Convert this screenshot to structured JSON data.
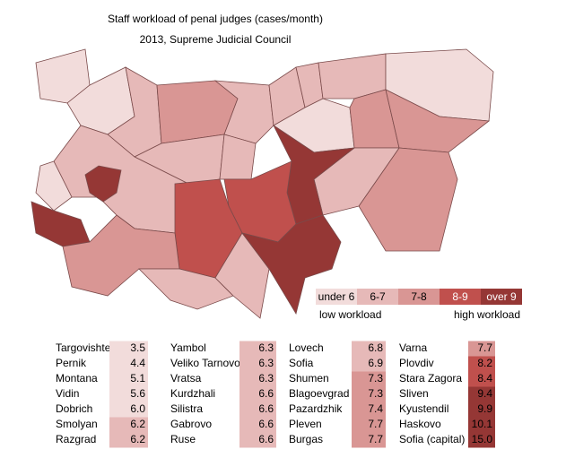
{
  "title": "Staff workload of penal judges (cases/month)",
  "subtitle": "2013, Supreme Judicial Council",
  "legend": {
    "items": [
      {
        "label": "under 6",
        "color": "#f2dcdb"
      },
      {
        "label": "6-7",
        "color": "#e6b9b8"
      },
      {
        "label": "7-8",
        "color": "#d99694"
      },
      {
        "label": "8-9",
        "color": "#c0504d"
      },
      {
        "label": "over 9",
        "color": "#953735"
      }
    ],
    "low_label": "low workload",
    "high_label": "high workload"
  },
  "table": {
    "columns": [
      [
        {
          "name": "Targovishte",
          "value": "3.5",
          "color": "#f2dcdb"
        },
        {
          "name": "Pernik",
          "value": "4.4",
          "color": "#f2dcdb"
        },
        {
          "name": "Montana",
          "value": "5.1",
          "color": "#f2dcdb"
        },
        {
          "name": "Vidin",
          "value": "5.6",
          "color": "#f2dcdb"
        },
        {
          "name": "Dobrich",
          "value": "6.0",
          "color": "#f2dcdb"
        },
        {
          "name": "Smolyan",
          "value": "6.2",
          "color": "#e6b9b8"
        },
        {
          "name": "Razgrad",
          "value": "6.2",
          "color": "#e6b9b8"
        }
      ],
      [
        {
          "name": "Yambol",
          "value": "6.3",
          "color": "#e6b9b8"
        },
        {
          "name": "Veliko Tarnovo",
          "value": "6.3",
          "color": "#e6b9b8"
        },
        {
          "name": "Vratsa",
          "value": "6.3",
          "color": "#e6b9b8"
        },
        {
          "name": "Kurdzhali",
          "value": "6.6",
          "color": "#e6b9b8"
        },
        {
          "name": "Silistra",
          "value": "6.6",
          "color": "#e6b9b8"
        },
        {
          "name": "Gabrovo",
          "value": "6.6",
          "color": "#e6b9b8"
        },
        {
          "name": "Ruse",
          "value": "6.6",
          "color": "#e6b9b8"
        }
      ],
      [
        {
          "name": "Lovech",
          "value": "6.8",
          "color": "#e6b9b8"
        },
        {
          "name": "Sofia",
          "value": "6.9",
          "color": "#e6b9b8"
        },
        {
          "name": "Shumen",
          "value": "7.3",
          "color": "#d99694"
        },
        {
          "name": "Blagoevgrad",
          "value": "7.3",
          "color": "#d99694"
        },
        {
          "name": "Pazardzhik",
          "value": "7.4",
          "color": "#d99694"
        },
        {
          "name": "Pleven",
          "value": "7.7",
          "color": "#d99694"
        },
        {
          "name": "Burgas",
          "value": "7.7",
          "color": "#d99694"
        }
      ],
      [
        {
          "name": "Varna",
          "value": "7.7",
          "color": "#d99694"
        },
        {
          "name": "Plovdiv",
          "value": "8.2",
          "color": "#c0504d"
        },
        {
          "name": "Stara Zagora",
          "value": "8.4",
          "color": "#c0504d"
        },
        {
          "name": "Sliven",
          "value": "9.4",
          "color": "#953735"
        },
        {
          "name": "Kyustendil",
          "value": "9.9",
          "color": "#953735"
        },
        {
          "name": "Haskovo",
          "value": "10.1",
          "color": "#953735"
        },
        {
          "name": "Sofia (capital)",
          "value": "15.0",
          "color": "#953735"
        }
      ]
    ]
  }
}
